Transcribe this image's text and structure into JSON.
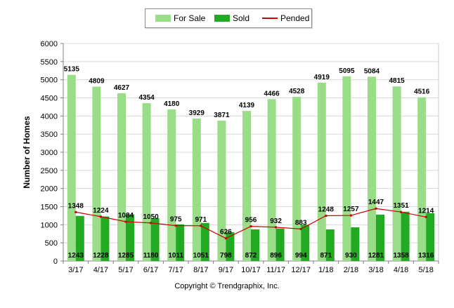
{
  "chart_data": {
    "type": "bar",
    "categories": [
      "3/17",
      "4/17",
      "5/17",
      "6/17",
      "7/17",
      "8/17",
      "9/17",
      "10/17",
      "11/17",
      "12/17",
      "1/18",
      "2/18",
      "3/18",
      "4/18",
      "5/18"
    ],
    "series": [
      {
        "name": "For Sale",
        "type": "bar",
        "color": "#99dd88",
        "values": [
          5135,
          4809,
          4627,
          4354,
          4180,
          3929,
          3871,
          4139,
          4466,
          4528,
          4919,
          5095,
          5084,
          4815,
          4516
        ]
      },
      {
        "name": "Sold",
        "type": "bar",
        "color": "#22aa22",
        "values": [
          1243,
          1228,
          1285,
          1180,
          1011,
          1051,
          798,
          872,
          896,
          994,
          871,
          930,
          1281,
          1358,
          1316
        ]
      },
      {
        "name": "Pended",
        "type": "line",
        "color": "#cc0000",
        "values": [
          1348,
          1224,
          1084,
          1050,
          975,
          971,
          626,
          956,
          932,
          883,
          1248,
          1257,
          1447,
          1351,
          1214
        ]
      }
    ],
    "ylabel": "Number of Homes",
    "ylim": [
      0,
      6000
    ],
    "yticks": [
      0,
      500,
      1000,
      1500,
      2000,
      2500,
      3000,
      3500,
      4000,
      4500,
      5000,
      5500,
      6000
    ],
    "legend_position": "top-center",
    "grid": true
  },
  "footer": "Copyright © Trendgraphix, Inc."
}
